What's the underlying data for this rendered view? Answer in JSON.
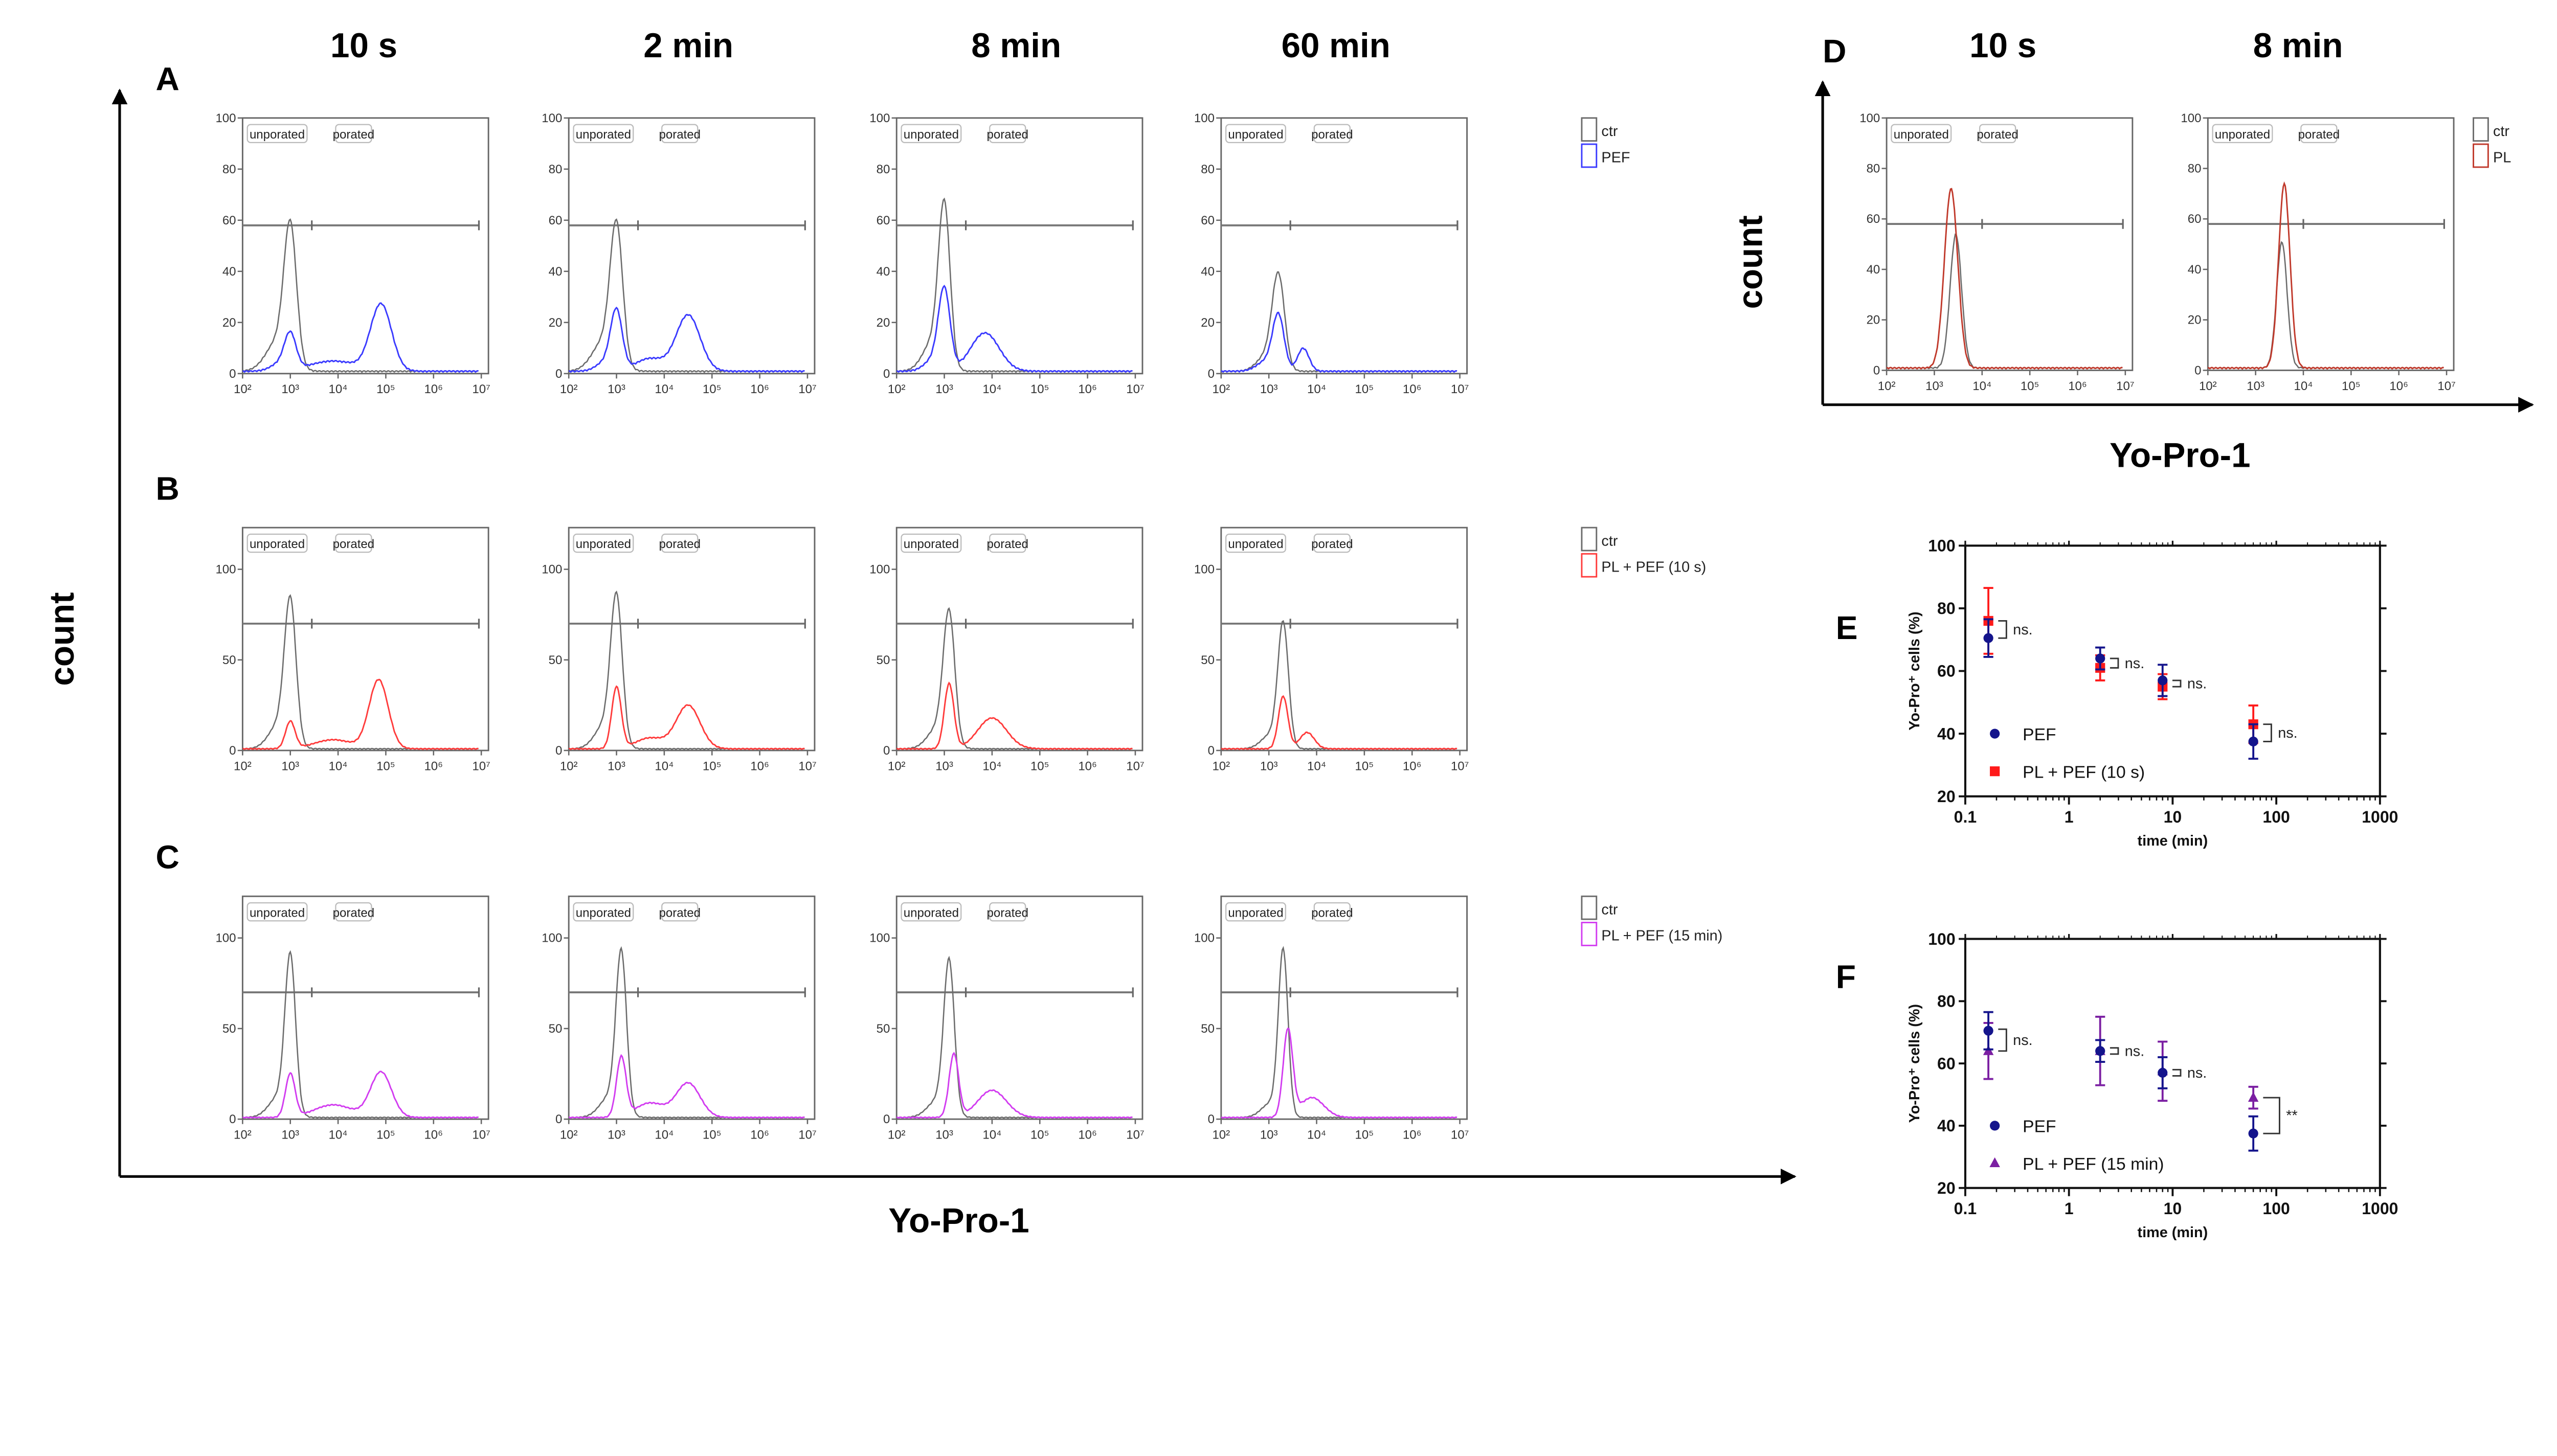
{
  "headers": {
    "columns": [
      "10 s",
      "2 min",
      "8 min",
      "60 min"
    ],
    "d_columns": [
      "10 s",
      "8 min"
    ],
    "letters": [
      "A",
      "B",
      "C",
      "D",
      "E",
      "F"
    ]
  },
  "axes": {
    "main_y": "count",
    "main_x": "Yo-Pro-1",
    "d_y": "count",
    "d_x": "Yo-Pro-1"
  },
  "histogram_common": {
    "x_tick_labels": [
      "10²",
      "10³",
      "10⁴",
      "10⁵",
      "10⁶",
      "10⁷"
    ],
    "x_range_log10": [
      2,
      7.15
    ],
    "gate_labels": [
      "unporated",
      "porated"
    ],
    "colors": {
      "ctr": "#6b6b6b",
      "PEF": "#3a3aff",
      "PL + PEF (10 s)": "#ff3b3b",
      "PL + PEF (15 min)": "#d23cf0",
      "PL": "#c0392b"
    }
  },
  "chart_data": [
    {
      "id": "A",
      "type": "line",
      "title": "A",
      "xlabel": "Yo-Pro-1",
      "ylabel": "count",
      "ylim": [
        0,
        100
      ],
      "y_ticks": [
        0,
        20,
        40,
        60,
        80,
        100
      ],
      "gate_y": 58,
      "gate_split_log10": 3.45,
      "legend": [
        "ctr",
        "PEF"
      ],
      "legend_colors": [
        "#6b6b6b",
        "#3a3aff"
      ],
      "panels": [
        {
          "time": "10 s",
          "series": [
            {
              "name": "ctr",
              "peaks": [
                [
                  3.0,
                  52,
                  0.13
                ],
                [
                  2.75,
                  12,
                  0.25
                ]
              ]
            },
            {
              "name": "PEF",
              "peaks": [
                [
                  3.0,
                  13,
                  0.12
                ],
                [
                  3.9,
                  4,
                  0.5
                ],
                [
                  4.9,
                  26,
                  0.22
                ],
                [
                  2.8,
                  3,
                  0.2
                ]
              ]
            }
          ]
        },
        {
          "time": "2 min",
          "series": [
            {
              "name": "ctr",
              "peaks": [
                [
                  3.0,
                  52,
                  0.13
                ],
                [
                  2.75,
                  12,
                  0.25
                ]
              ]
            },
            {
              "name": "PEF",
              "peaks": [
                [
                  3.0,
                  22,
                  0.12
                ],
                [
                  3.7,
                  5,
                  0.3
                ],
                [
                  4.5,
                  22,
                  0.25
                ],
                [
                  2.8,
                  4,
                  0.2
                ]
              ]
            }
          ]
        },
        {
          "time": "8 min",
          "series": [
            {
              "name": "ctr",
              "peaks": [
                [
                  3.0,
                  60,
                  0.12
                ],
                [
                  2.78,
                  12,
                  0.22
                ]
              ]
            },
            {
              "name": "PEF",
              "peaks": [
                [
                  3.0,
                  30,
                  0.12
                ],
                [
                  3.85,
                  15,
                  0.3
                ],
                [
                  2.8,
                  5,
                  0.2
                ]
              ]
            }
          ]
        },
        {
          "time": "60 min",
          "series": [
            {
              "name": "ctr",
              "peaks": [
                [
                  3.2,
                  36,
                  0.13
                ],
                [
                  2.95,
                  6,
                  0.2
                ]
              ]
            },
            {
              "name": "PEF",
              "peaks": [
                [
                  3.2,
                  21,
                  0.12
                ],
                [
                  3.72,
                  9,
                  0.12
                ],
                [
                  2.95,
                  4,
                  0.2
                ]
              ]
            }
          ]
        }
      ]
    },
    {
      "id": "B",
      "type": "line",
      "title": "B",
      "xlabel": "Yo-Pro-1",
      "ylabel": "count",
      "ylim": [
        0,
        123
      ],
      "y_ticks": [
        0,
        50,
        100
      ],
      "gate_y": 70,
      "gate_split_log10": 3.45,
      "legend": [
        "ctr",
        "PL + PEF (10 s)"
      ],
      "legend_colors": [
        "#6b6b6b",
        "#ff3b3b"
      ],
      "panels": [
        {
          "time": "10 s",
          "series": [
            {
              "name": "ctr",
              "peaks": [
                [
                  3.0,
                  76,
                  0.12
                ],
                [
                  2.78,
                  14,
                  0.22
                ]
              ]
            },
            {
              "name": "PL + PEF (10 s)",
              "peaks": [
                [
                  3.0,
                  15,
                  0.1
                ],
                [
                  3.9,
                  5,
                  0.4
                ],
                [
                  4.85,
                  38,
                  0.2
                ]
              ]
            }
          ]
        },
        {
          "time": "2 min",
          "series": [
            {
              "name": "ctr",
              "peaks": [
                [
                  3.0,
                  78,
                  0.12
                ],
                [
                  2.78,
                  14,
                  0.22
                ]
              ]
            },
            {
              "name": "PL + PEF (10 s)",
              "peaks": [
                [
                  3.0,
                  34,
                  0.1
                ],
                [
                  3.7,
                  6,
                  0.3
                ],
                [
                  4.5,
                  24,
                  0.25
                ]
              ]
            }
          ]
        },
        {
          "time": "8 min",
          "series": [
            {
              "name": "ctr",
              "peaks": [
                [
                  3.1,
                  70,
                  0.12
                ],
                [
                  2.88,
                  12,
                  0.22
                ]
              ]
            },
            {
              "name": "PL + PEF (10 s)",
              "peaks": [
                [
                  3.1,
                  36,
                  0.1
                ],
                [
                  4.0,
                  17,
                  0.3
                ]
              ]
            }
          ]
        },
        {
          "time": "60 min",
          "series": [
            {
              "name": "ctr",
              "peaks": [
                [
                  3.3,
                  67,
                  0.11
                ],
                [
                  3.05,
                  8,
                  0.2
                ]
              ]
            },
            {
              "name": "PL + PEF (10 s)",
              "peaks": [
                [
                  3.3,
                  29,
                  0.1
                ],
                [
                  3.8,
                  9,
                  0.15
                ]
              ]
            }
          ]
        }
      ]
    },
    {
      "id": "C",
      "type": "line",
      "title": "C",
      "xlabel": "Yo-Pro-1",
      "ylabel": "count",
      "ylim": [
        0,
        123
      ],
      "y_ticks": [
        0,
        50,
        100
      ],
      "gate_y": 70,
      "gate_split_log10": 3.45,
      "legend": [
        "ctr",
        "PL + PEF (15 min)"
      ],
      "legend_colors": [
        "#6b6b6b",
        "#d23cf0"
      ],
      "panels": [
        {
          "time": "10 s",
          "series": [
            {
              "name": "ctr",
              "peaks": [
                [
                  3.0,
                  84,
                  0.11
                ],
                [
                  2.78,
                  12,
                  0.22
                ]
              ]
            },
            {
              "name": "PL + PEF (15 min)",
              "peaks": [
                [
                  3.0,
                  24,
                  0.1
                ],
                [
                  3.9,
                  7,
                  0.4
                ],
                [
                  4.9,
                  25,
                  0.22
                ]
              ]
            }
          ]
        },
        {
          "time": "2 min",
          "series": [
            {
              "name": "ctr",
              "peaks": [
                [
                  3.1,
                  86,
                  0.11
                ],
                [
                  2.88,
                  12,
                  0.22
                ]
              ]
            },
            {
              "name": "PL + PEF (15 min)",
              "peaks": [
                [
                  3.1,
                  33,
                  0.1
                ],
                [
                  3.7,
                  8,
                  0.3
                ],
                [
                  4.5,
                  19,
                  0.25
                ]
              ]
            }
          ]
        },
        {
          "time": "8 min",
          "series": [
            {
              "name": "ctr",
              "peaks": [
                [
                  3.1,
                  82,
                  0.11
                ],
                [
                  2.88,
                  10,
                  0.22
                ]
              ]
            },
            {
              "name": "PL + PEF (15 min)",
              "peaks": [
                [
                  3.2,
                  35,
                  0.1
                ],
                [
                  4.0,
                  15,
                  0.3
                ]
              ]
            }
          ]
        },
        {
          "time": "60 min",
          "series": [
            {
              "name": "ctr",
              "peaks": [
                [
                  3.3,
                  90,
                  0.1
                ],
                [
                  3.05,
                  8,
                  0.2
                ]
              ]
            },
            {
              "name": "PL + PEF (15 min)",
              "peaks": [
                [
                  3.4,
                  48,
                  0.1
                ],
                [
                  3.9,
                  11,
                  0.25
                ]
              ]
            }
          ]
        }
      ]
    },
    {
      "id": "D",
      "type": "line",
      "title": "D",
      "xlabel": "Yo-Pro-1",
      "ylabel": "count",
      "ylim": [
        0,
        100
      ],
      "y_ticks": [
        0,
        20,
        40,
        60,
        80,
        100
      ],
      "gate_y": 58,
      "gate_split_log10": 4.0,
      "legend": [
        "ctr",
        "PL"
      ],
      "legend_colors": [
        "#6b6b6b",
        "#c0392b"
      ],
      "panels": [
        {
          "time": "10 s",
          "series": [
            {
              "name": "ctr",
              "peaks": [
                [
                  3.45,
                  53,
                  0.12
                ]
              ]
            },
            {
              "name": "PL",
              "peaks": [
                [
                  3.35,
                  71,
                  0.14
                ]
              ]
            }
          ]
        },
        {
          "time": "8 min",
          "series": [
            {
              "name": "ctr",
              "peaks": [
                [
                  3.55,
                  50,
                  0.11
                ]
              ]
            },
            {
              "name": "PL",
              "peaks": [
                [
                  3.6,
                  73,
                  0.12
                ]
              ]
            }
          ]
        }
      ]
    },
    {
      "id": "E",
      "type": "scatter",
      "xscale": "log",
      "xlim": [
        0.1,
        1000
      ],
      "ylim": [
        20,
        100
      ],
      "x_tick_labels": [
        "0.1",
        "1",
        "10",
        "100",
        "1000"
      ],
      "y_tick_labels": [
        "20",
        "40",
        "60",
        "80",
        "100"
      ],
      "xlabel": "time (min)",
      "ylabel": "Yo-Pro⁺ cells (%)",
      "legend_position": "bottom-left",
      "series": [
        {
          "name": "PEF",
          "marker": "circle",
          "color": "#14148c",
          "x": [
            0.167,
            2,
            8,
            60
          ],
          "y": [
            70.5,
            64,
            57,
            37.5
          ],
          "err": [
            6,
            3.5,
            5,
            5.5
          ]
        },
        {
          "name": "PL + PEF (10 s)",
          "marker": "square",
          "color": "#ff1a1a",
          "x": [
            0.167,
            2,
            8,
            60
          ],
          "y": [
            76,
            61,
            55,
            43
          ],
          "err": [
            10.5,
            4,
            4,
            6
          ]
        }
      ],
      "annotations": [
        {
          "x": 0.167,
          "y_range": [
            70.5,
            76
          ],
          "label": "ns."
        },
        {
          "x": 2,
          "y_range": [
            61,
            64
          ],
          "label": "ns."
        },
        {
          "x": 8,
          "y_range": [
            55,
            57
          ],
          "label": "ns."
        },
        {
          "x": 60,
          "y_range": [
            37.5,
            43
          ],
          "label": "ns."
        }
      ]
    },
    {
      "id": "F",
      "type": "scatter",
      "xscale": "log",
      "xlim": [
        0.1,
        1000
      ],
      "ylim": [
        20,
        100
      ],
      "x_tick_labels": [
        "0.1",
        "1",
        "10",
        "100",
        "1000"
      ],
      "y_tick_labels": [
        "20",
        "40",
        "60",
        "80",
        "100"
      ],
      "xlabel": "time (min)",
      "ylabel": "Yo-Pro⁺ cells (%)",
      "legend_position": "bottom-left",
      "series": [
        {
          "name": "PEF",
          "marker": "circle",
          "color": "#14148c",
          "x": [
            0.167,
            2,
            8,
            60
          ],
          "y": [
            70.5,
            64,
            57,
            37.5
          ],
          "err": [
            6,
            3.5,
            5,
            5.5
          ]
        },
        {
          "name": "PL + PEF (15 min)",
          "marker": "triangle",
          "color": "#7b1fa2",
          "x": [
            0.167,
            2,
            8,
            60
          ],
          "y": [
            64,
            64,
            57.5,
            49
          ],
          "err": [
            9,
            11,
            9.5,
            3.5
          ]
        }
      ],
      "annotations": [
        {
          "x": 0.167,
          "y_range": [
            64,
            71
          ],
          "label": "ns."
        },
        {
          "x": 2,
          "y_range": [
            63,
            65
          ],
          "label": "ns."
        },
        {
          "x": 8,
          "y_range": [
            56,
            58
          ],
          "label": "ns."
        },
        {
          "x": 60,
          "y_range": [
            37.5,
            49
          ],
          "label": "**"
        }
      ]
    }
  ]
}
